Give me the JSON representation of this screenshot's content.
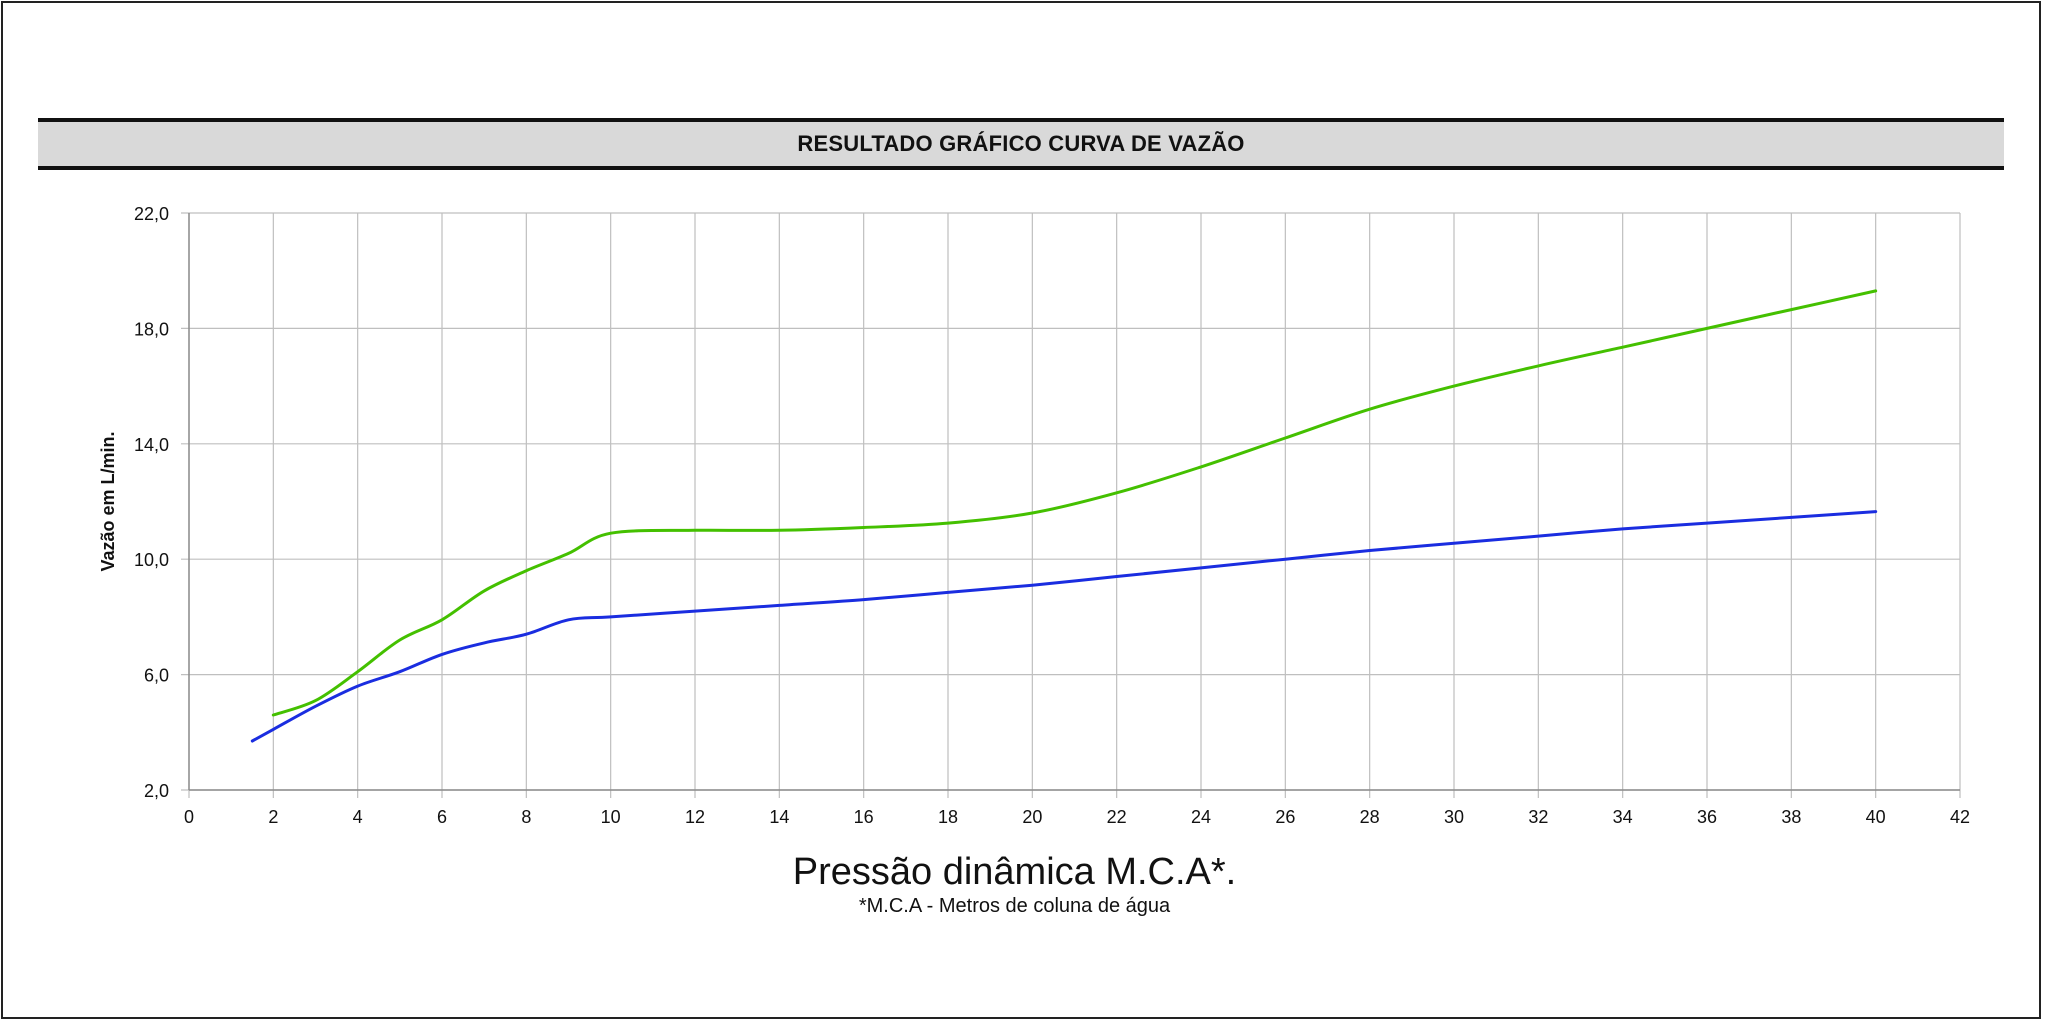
{
  "header": {
    "title": "RESULTADO GRÁFICO CURVA DE VAZÃO"
  },
  "chart_data": {
    "type": "line",
    "title": "RESULTADO GRÁFICO CURVA DE VAZÃO",
    "xlabel": "Pressão dinâmica M.C.A*.",
    "xlabel_note": "*M.C.A - Metros de coluna de água",
    "ylabel": "Vazão em L/min.",
    "xlim": [
      0,
      42
    ],
    "ylim": [
      2,
      22
    ],
    "x_ticks": [
      "0",
      "2",
      "4",
      "6",
      "8",
      "10",
      "12",
      "14",
      "16",
      "18",
      "20",
      "22",
      "24",
      "26",
      "28",
      "30",
      "32",
      "34",
      "36",
      "38",
      "40",
      "42"
    ],
    "y_ticks": [
      "2,0",
      "6,0",
      "10,0",
      "14,0",
      "18,0",
      "22,0"
    ],
    "grid": true,
    "series": [
      {
        "color": "#44c000",
        "points": [
          [
            2,
            4.6
          ],
          [
            3,
            5.1
          ],
          [
            4,
            6.1
          ],
          [
            5,
            7.2
          ],
          [
            6,
            7.9
          ],
          [
            7,
            8.9
          ],
          [
            8,
            9.6
          ],
          [
            9,
            10.2
          ],
          [
            10,
            10.9
          ],
          [
            12,
            11.0
          ],
          [
            14,
            11.0
          ],
          [
            16,
            11.1
          ],
          [
            18,
            11.25
          ],
          [
            20,
            11.6
          ],
          [
            22,
            12.3
          ],
          [
            24,
            13.2
          ],
          [
            26,
            14.2
          ],
          [
            28,
            15.2
          ],
          [
            30,
            16.0
          ],
          [
            32,
            16.7
          ],
          [
            34,
            17.35
          ],
          [
            36,
            18.0
          ],
          [
            38,
            18.65
          ],
          [
            40,
            19.3
          ]
        ]
      },
      {
        "color": "#1a2de0",
        "points": [
          [
            1.5,
            3.7
          ],
          [
            2,
            4.1
          ],
          [
            3,
            4.9
          ],
          [
            4,
            5.6
          ],
          [
            5,
            6.1
          ],
          [
            6,
            6.7
          ],
          [
            7,
            7.1
          ],
          [
            8,
            7.4
          ],
          [
            9,
            7.9
          ],
          [
            10,
            8.0
          ],
          [
            12,
            8.2
          ],
          [
            14,
            8.4
          ],
          [
            16,
            8.6
          ],
          [
            18,
            8.85
          ],
          [
            20,
            9.1
          ],
          [
            22,
            9.4
          ],
          [
            24,
            9.7
          ],
          [
            26,
            10.0
          ],
          [
            28,
            10.3
          ],
          [
            30,
            10.55
          ],
          [
            32,
            10.8
          ],
          [
            34,
            11.05
          ],
          [
            36,
            11.25
          ],
          [
            38,
            11.45
          ],
          [
            40,
            11.65
          ]
        ]
      }
    ]
  }
}
